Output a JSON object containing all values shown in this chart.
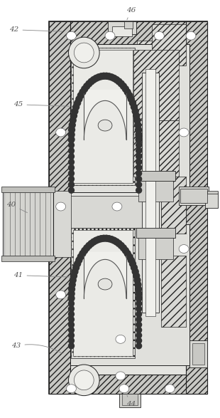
{
  "figsize": [
    3.1,
    5.87
  ],
  "dpi": 100,
  "bg": "#ffffff",
  "lc": "#444444",
  "dc": "#222222",
  "gray_light": "#e8e8e4",
  "gray_mid": "#d0d0cc",
  "gray_dark": "#b0b0ac",
  "hatch_fill": "#d8d8d4",
  "label_fs": 7.5,
  "label_color": "#555555"
}
